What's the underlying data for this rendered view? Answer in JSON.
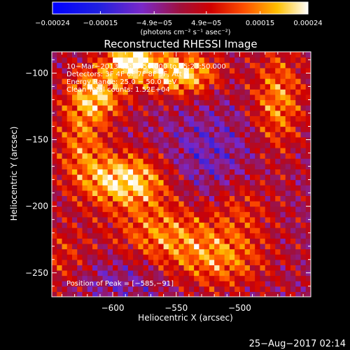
{
  "chart_data": {
    "type": "heatmap",
    "title": "Reconstructed RHESSI Image",
    "xlabel": "Heliocentric X (arcsec)",
    "ylabel": "Heliocentric Y (arcsec)",
    "xlim": [
      -648,
      -444
    ],
    "ylim": [
      -268,
      -84
    ],
    "x_ticks": [
      -600,
      -550,
      -500
    ],
    "x_tick_labels": [
      "−600",
      "−550",
      "−500"
    ],
    "y_ticks": [
      -100,
      -150,
      -200,
      -250
    ],
    "y_tick_labels": [
      "−100",
      "−150",
      "−200",
      "−250"
    ],
    "colorbar": {
      "range": [
        -0.00024,
        0.00024
      ],
      "ticks": [
        -0.00024,
        -0.00015,
        -4.9e-05,
        4.9e-05,
        0.00015,
        0.00024
      ],
      "tick_labels": [
        "−0.00024",
        "−0.00015",
        "−4.9e−05",
        "4.9e−05",
        "0.00015",
        "0.00024"
      ],
      "units_label": "(photons cm⁻² s⁻¹ asec⁻²)"
    },
    "annotations": [
      "10−Mar−2013 15:13:50.000 to 15:23:50.000",
      "Detectors: 3F 4F 6F 7F 8F 9F, Att 0",
      "Energy Range: 25.0 − 50.0 keV",
      "Clean    Total counts: 1.52E+04"
    ],
    "peak_label": "Position of Peak = [−585,−91]",
    "peak": [
      -585,
      -91
    ],
    "sources": [
      {
        "x": -585,
        "y": -91,
        "amplitude": 0.00024,
        "sigma_x": 14,
        "sigma_y": 9
      },
      {
        "x": -545,
        "y": -100,
        "amplitude": 0.00021,
        "sigma_x": 20,
        "sigma_y": 12
      },
      {
        "x": -612,
        "y": -115,
        "amplitude": 0.00018,
        "sigma_x": 16,
        "sigma_y": 14
      },
      {
        "x": -590,
        "y": -180,
        "amplitude": 0.00022,
        "sigma_x": 24,
        "sigma_y": 14
      },
      {
        "x": -625,
        "y": -150,
        "amplitude": 0.00012,
        "sigma_x": 14,
        "sigma_y": 22
      },
      {
        "x": -560,
        "y": -220,
        "amplitude": 0.00014,
        "sigma_x": 28,
        "sigma_y": 18
      },
      {
        "x": -515,
        "y": -240,
        "amplitude": 0.00013,
        "sigma_x": 26,
        "sigma_y": 16
      },
      {
        "x": -470,
        "y": -120,
        "amplitude": 0.00015,
        "sigma_x": 14,
        "sigma_y": 26
      },
      {
        "x": -500,
        "y": -200,
        "amplitude": 9e-05,
        "sigma_x": 18,
        "sigma_y": 18
      },
      {
        "x": -640,
        "y": -240,
        "amplitude": 8e-05,
        "sigma_x": 16,
        "sigma_y": 18
      }
    ],
    "cold_regions": [
      {
        "x": -525,
        "y": -165,
        "amplitude": -8e-05,
        "sigma_x": 26,
        "sigma_y": 28
      },
      {
        "x": -595,
        "y": -255,
        "amplitude": -6e-05,
        "sigma_x": 30,
        "sigma_y": 14
      }
    ]
  },
  "footer": {
    "timestamp": "25−Aug−2017 02:14"
  }
}
